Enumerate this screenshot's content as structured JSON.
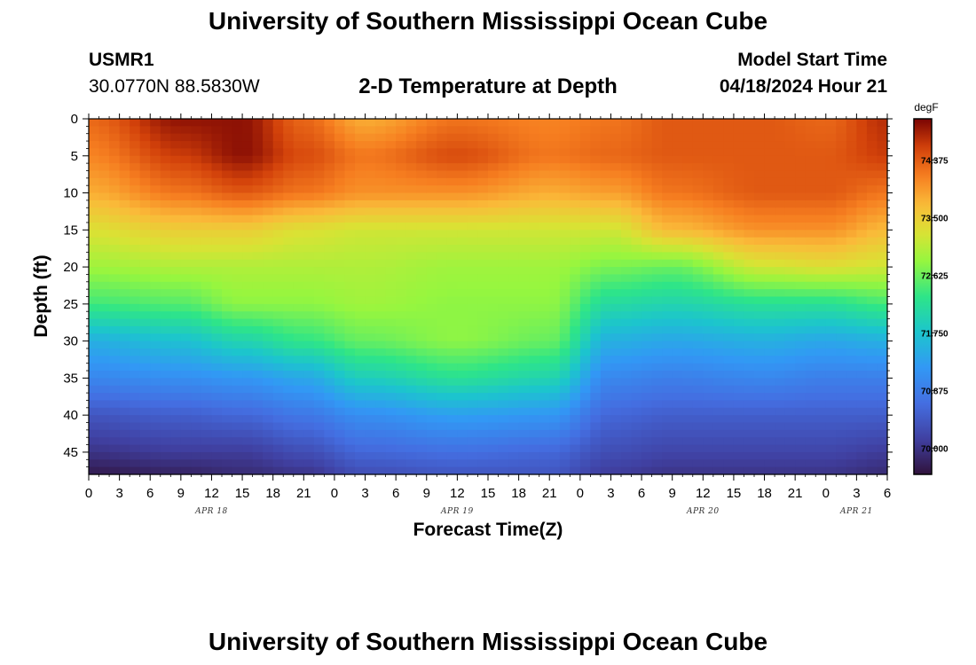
{
  "header": {
    "title": "University of Southern Mississippi Ocean Cube",
    "station_id": "USMR1",
    "coordinates": "30.0770N  88.5830W",
    "subtitle": "2-D Temperature at Depth",
    "model_start_label": "Model Start Time",
    "model_start_value": "04/18/2024 Hour 21"
  },
  "footer": {
    "title": "University of Southern Mississippi Ocean Cube"
  },
  "chart_data": {
    "type": "heatmap",
    "title": "2-D Temperature at Depth",
    "xlabel": "Forecast Time(Z)",
    "ylabel": "Depth (ft)",
    "x_hours_range": [
      0,
      78
    ],
    "x_tick_hours": [
      0,
      3,
      6,
      9,
      12,
      15,
      18,
      21,
      24,
      27,
      30,
      33,
      36,
      39,
      42,
      45,
      48,
      51,
      54,
      57,
      60,
      63,
      66,
      69,
      72,
      75,
      78
    ],
    "x_tick_labels": [
      "0",
      "3",
      "6",
      "9",
      "12",
      "15",
      "18",
      "21",
      "0",
      "3",
      "6",
      "9",
      "12",
      "15",
      "18",
      "21",
      "0",
      "3",
      "6",
      "9",
      "12",
      "15",
      "18",
      "21",
      "0",
      "3",
      "6"
    ],
    "date_labels": [
      {
        "label": "APR 18",
        "hour": 12
      },
      {
        "label": "APR 19",
        "hour": 36
      },
      {
        "label": "APR 20",
        "hour": 60
      },
      {
        "label": "APR 21",
        "hour": 75
      }
    ],
    "ylim": [
      0,
      48
    ],
    "y_ticks": [
      0,
      5,
      10,
      15,
      20,
      25,
      30,
      35,
      40,
      45
    ],
    "y_tick_labels": [
      "0",
      "5",
      "10",
      "15",
      "20",
      "25",
      "30",
      "35",
      "40",
      "45"
    ],
    "colorbar": {
      "unit": "degF",
      "min": 69.6,
      "max": 75.0,
      "ticks": [
        74.375,
        73.5,
        72.625,
        71.75,
        70.875,
        70.0
      ],
      "tick_labels": [
        "74.375",
        "73.500",
        "72.625",
        "71.750",
        "70.875",
        "70.000"
      ]
    },
    "profiles": [
      {
        "hour": 0,
        "depth": [
          0,
          5,
          10,
          15,
          20,
          25,
          30,
          35,
          40,
          45,
          48
        ],
        "temp": [
          74.3,
          74.1,
          73.8,
          73.3,
          72.9,
          72.4,
          71.5,
          71.0,
          70.4,
          70.0,
          69.7
        ]
      },
      {
        "hour": 9,
        "depth": [
          0,
          5,
          10,
          15,
          20,
          25,
          30,
          35,
          40,
          45,
          48
        ],
        "temp": [
          74.9,
          74.6,
          74.2,
          73.5,
          73.0,
          72.5,
          71.7,
          71.1,
          70.5,
          70.1,
          69.8
        ]
      },
      {
        "hour": 15,
        "depth": [
          0,
          5,
          10,
          15,
          20,
          25,
          30,
          35,
          40,
          45,
          48
        ],
        "temp": [
          74.9,
          74.9,
          74.4,
          73.5,
          73.0,
          72.8,
          72.0,
          71.2,
          70.6,
          70.1,
          69.9
        ]
      },
      {
        "hour": 21,
        "depth": [
          0,
          5,
          10,
          15,
          20,
          25,
          30,
          35,
          40,
          45,
          48
        ],
        "temp": [
          74.3,
          74.5,
          74.2,
          73.3,
          73.0,
          72.8,
          72.3,
          71.4,
          70.8,
          70.3,
          70.0
        ]
      },
      {
        "hour": 27,
        "depth": [
          0,
          5,
          10,
          15,
          20,
          25,
          30,
          35,
          40,
          45,
          48
        ],
        "temp": [
          73.8,
          74.2,
          74.0,
          73.2,
          73.0,
          72.9,
          72.6,
          71.9,
          71.1,
          70.6,
          70.3
        ]
      },
      {
        "hour": 36,
        "depth": [
          0,
          5,
          10,
          15,
          20,
          25,
          30,
          35,
          40,
          45,
          48
        ],
        "temp": [
          74.2,
          74.5,
          74.0,
          73.2,
          72.9,
          72.8,
          72.8,
          72.2,
          71.3,
          70.7,
          70.4
        ]
      },
      {
        "hour": 45,
        "depth": [
          0,
          5,
          10,
          15,
          20,
          25,
          30,
          35,
          40,
          45,
          48
        ],
        "temp": [
          74.1,
          74.2,
          73.8,
          73.2,
          72.9,
          72.8,
          72.6,
          72.0,
          71.2,
          70.6,
          70.4
        ]
      },
      {
        "hour": 51,
        "depth": [
          0,
          5,
          10,
          15,
          20,
          25,
          30,
          35,
          40,
          45,
          48
        ],
        "temp": [
          74.2,
          74.3,
          73.9,
          73.2,
          72.7,
          72.1,
          71.5,
          71.0,
          70.6,
          70.3,
          70.1
        ]
      },
      {
        "hour": 57,
        "depth": [
          0,
          5,
          10,
          15,
          20,
          25,
          30,
          35,
          40,
          45,
          48
        ],
        "temp": [
          74.4,
          74.4,
          74.2,
          73.7,
          72.6,
          72.0,
          71.4,
          70.9,
          70.5,
          70.2,
          70.0
        ]
      },
      {
        "hour": 66,
        "depth": [
          0,
          5,
          10,
          15,
          20,
          25,
          30,
          35,
          40,
          45,
          48
        ],
        "temp": [
          74.4,
          74.4,
          74.4,
          74.0,
          73.2,
          72.2,
          71.5,
          71.0,
          70.5,
          70.2,
          70.0
        ]
      },
      {
        "hour": 72,
        "depth": [
          0,
          5,
          10,
          15,
          20,
          25,
          30,
          35,
          40,
          45,
          48
        ],
        "temp": [
          74.3,
          74.4,
          74.4,
          74.0,
          73.3,
          72.2,
          71.4,
          70.9,
          70.5,
          70.2,
          70.0
        ]
      },
      {
        "hour": 78,
        "depth": [
          0,
          5,
          10,
          15,
          20,
          25,
          30,
          35,
          40,
          45,
          48
        ],
        "temp": [
          74.7,
          74.6,
          74.2,
          73.7,
          73.2,
          72.4,
          71.5,
          70.9,
          70.5,
          70.1,
          69.9
        ]
      }
    ]
  }
}
